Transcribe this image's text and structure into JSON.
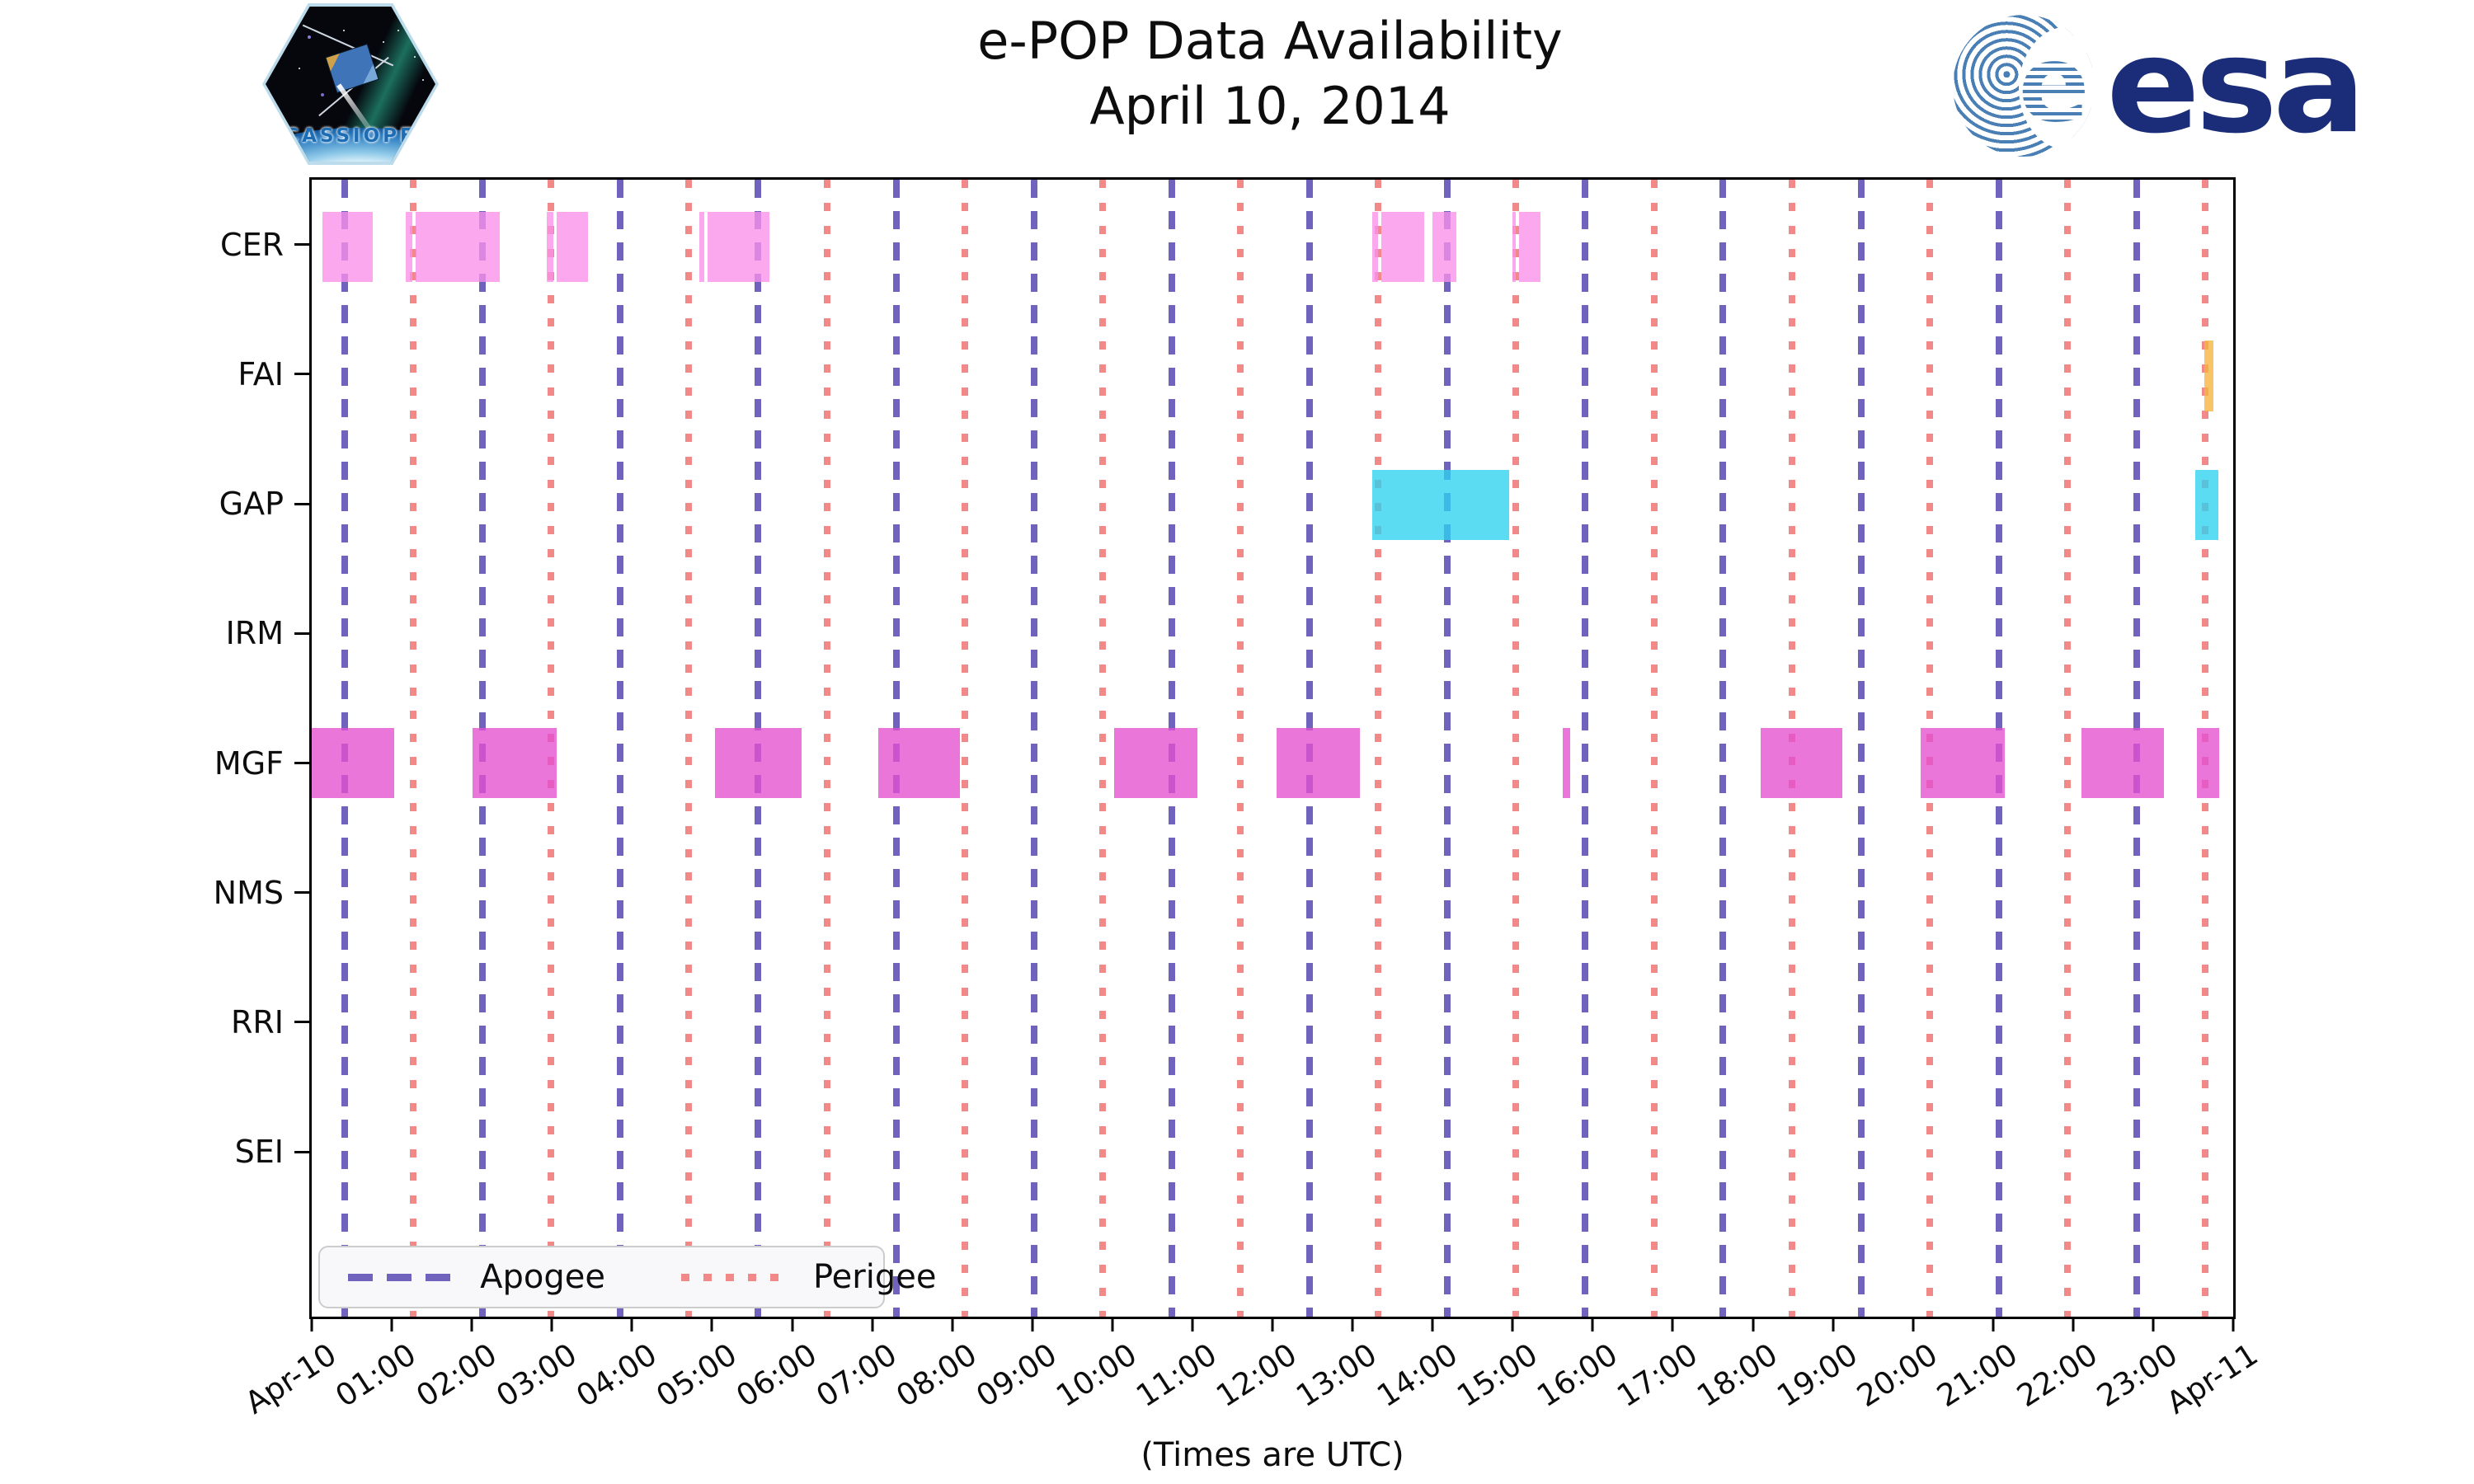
{
  "header": {
    "title_line1": "e-POP Data Availability",
    "title_line2": "April 10, 2014",
    "cassiope_patch_label": "CASSIOPE",
    "esa_logo_text": "esa",
    "esa_globe_letter": "e"
  },
  "chart_data": {
    "type": "bar",
    "subtype": "gantt-availability-timeline",
    "title": "e-POP Data Availability",
    "subtitle": "April 10, 2014",
    "xlabel": "(Times are UTC)",
    "grid": false,
    "x_axis": {
      "start_hour": 0,
      "end_hour": 24,
      "tick_interval_hours": 1,
      "tick_labels": [
        "Apr-10",
        "01:00",
        "02:00",
        "03:00",
        "04:00",
        "05:00",
        "06:00",
        "07:00",
        "08:00",
        "09:00",
        "10:00",
        "11:00",
        "12:00",
        "13:00",
        "14:00",
        "15:00",
        "16:00",
        "17:00",
        "18:00",
        "19:00",
        "20:00",
        "21:00",
        "22:00",
        "23:00",
        "Apr-11"
      ]
    },
    "categories": [
      "CER",
      "FAI",
      "GAP",
      "IRM",
      "MGF",
      "NMS",
      "RRI",
      "SEI"
    ],
    "series": [
      {
        "name": "CER",
        "color": "#fa8fe9",
        "intervals_hours": [
          [
            0.13,
            0.76
          ],
          [
            1.17,
            1.26
          ],
          [
            1.3,
            2.35
          ],
          [
            2.94,
            3.02
          ],
          [
            3.06,
            3.45
          ],
          [
            4.84,
            4.9
          ],
          [
            4.94,
            5.72
          ],
          [
            13.25,
            13.32
          ],
          [
            13.36,
            13.9
          ],
          [
            14.0,
            14.3
          ],
          [
            15.0,
            15.04
          ],
          [
            15.08,
            15.35
          ]
        ]
      },
      {
        "name": "FAI",
        "color": "#f6b43e",
        "intervals_hours": [
          [
            23.64,
            23.75
          ]
        ]
      },
      {
        "name": "GAP",
        "color": "#2ed2f0",
        "intervals_hours": [
          [
            13.25,
            14.96
          ],
          [
            23.53,
            23.81
          ]
        ]
      },
      {
        "name": "IRM",
        "color": "#9ad67a",
        "intervals_hours": []
      },
      {
        "name": "MGF",
        "color": "#e44fd0",
        "intervals_hours": [
          [
            0.0,
            1.03
          ],
          [
            2.01,
            3.06
          ],
          [
            5.04,
            6.12
          ],
          [
            7.08,
            8.1
          ],
          [
            10.02,
            11.06
          ],
          [
            12.05,
            13.09
          ],
          [
            15.63,
            15.72
          ],
          [
            18.1,
            19.12
          ],
          [
            20.1,
            21.15
          ],
          [
            22.1,
            23.13
          ],
          [
            23.55,
            23.83
          ]
        ]
      },
      {
        "name": "NMS",
        "color": "#c9b07a",
        "intervals_hours": []
      },
      {
        "name": "RRI",
        "color": "#8fb5f5",
        "intervals_hours": []
      },
      {
        "name": "SEI",
        "color": "#b7a0e8",
        "intervals_hours": []
      }
    ],
    "orbit_lines": {
      "apogee": {
        "label": "Apogee",
        "color": "#6f63bd",
        "style": "dashed",
        "hours": [
          0.41,
          2.13,
          3.85,
          5.57,
          7.3,
          9.02,
          10.74,
          12.46,
          14.18,
          15.9,
          17.62,
          19.35,
          21.07,
          22.79
        ]
      },
      "perigee": {
        "label": "Perigee",
        "color": "#f28989",
        "style": "dotted",
        "hours": [
          1.27,
          2.99,
          4.71,
          6.44,
          8.16,
          9.88,
          11.6,
          13.32,
          15.04,
          16.77,
          18.49,
          20.21,
          21.93,
          23.65
        ]
      }
    },
    "legend": {
      "apogee_label": "Apogee",
      "perigee_label": "Perigee",
      "position": "lower left"
    },
    "layout": {
      "row_start_pct": 5.9,
      "row_step_pct": 11.35,
      "bar_height_pct": 6.2
    }
  }
}
